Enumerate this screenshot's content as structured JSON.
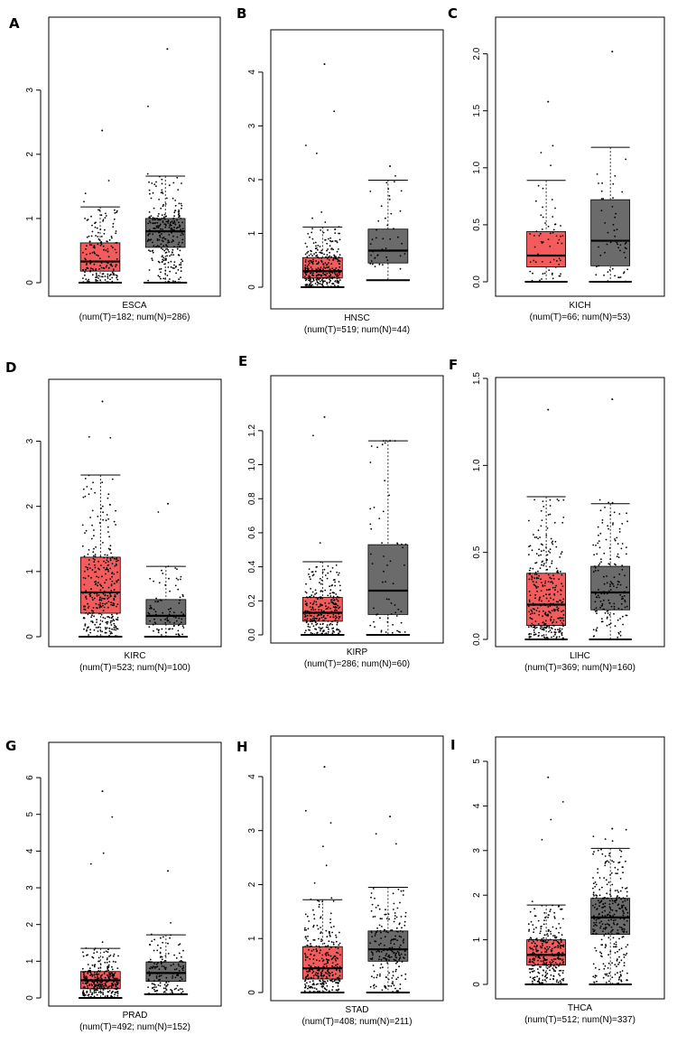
{
  "chart_data": [
    {
      "panel": "A",
      "type": "box",
      "category": "ESCA",
      "counts_label": "(num(T)=182; num(N)=286)",
      "y_ticks": [
        0,
        1,
        2,
        3
      ],
      "ylim": [
        0,
        3.7
      ],
      "series": [
        {
          "name": "T",
          "color": "#f25c5c",
          "n": 182,
          "min": 0.0,
          "q1": 0.18,
          "median": 0.33,
          "q3": 0.62,
          "whisker_high": 1.18,
          "max_point": 2.37
        },
        {
          "name": "N",
          "color": "#6b6b6b",
          "n": 286,
          "min": 0.0,
          "q1": 0.55,
          "median": 0.8,
          "q3": 1.0,
          "whisker_high": 1.66,
          "max_point": 3.64
        }
      ]
    },
    {
      "panel": "B",
      "type": "box",
      "category": "HNSC",
      "counts_label": "(num(T)=519; num(N)=44)",
      "y_ticks": [
        0,
        1,
        2,
        3,
        4
      ],
      "ylim": [
        0,
        4.25
      ],
      "series": [
        {
          "name": "T",
          "color": "#f25c5c",
          "n": 519,
          "min": 0.0,
          "q1": 0.17,
          "median": 0.3,
          "q3": 0.55,
          "whisker_high": 1.12,
          "max_point": 4.15
        },
        {
          "name": "N",
          "color": "#6b6b6b",
          "n": 44,
          "min": 0.13,
          "q1": 0.45,
          "median": 0.68,
          "q3": 1.08,
          "whisker_high": 1.99,
          "max_point": 2.25
        }
      ]
    },
    {
      "panel": "C",
      "type": "box",
      "category": "KICH",
      "counts_label": "(num(T)=66; num(N)=53)",
      "y_ticks": [
        0.0,
        0.5,
        1.0,
        1.5,
        2.0
      ],
      "ylim": [
        0,
        2.1
      ],
      "series": [
        {
          "name": "T",
          "color": "#f25c5c",
          "n": 66,
          "min": 0.0,
          "q1": 0.13,
          "median": 0.23,
          "q3": 0.44,
          "whisker_high": 0.89,
          "max_point": 1.58
        },
        {
          "name": "N",
          "color": "#6b6b6b",
          "n": 53,
          "min": 0.0,
          "q1": 0.14,
          "median": 0.36,
          "q3": 0.72,
          "whisker_high": 1.18,
          "max_point": 2.02
        }
      ]
    },
    {
      "panel": "D",
      "type": "box",
      "category": "KIRC",
      "counts_label": "(num(T)=523; num(N)=100)",
      "y_ticks": [
        0,
        1,
        2,
        3
      ],
      "ylim": [
        0,
        3.7
      ],
      "series": [
        {
          "name": "T",
          "color": "#f25c5c",
          "n": 523,
          "min": 0.0,
          "q1": 0.36,
          "median": 0.68,
          "q3": 1.22,
          "whisker_high": 2.48,
          "max_point": 3.61
        },
        {
          "name": "N",
          "color": "#6b6b6b",
          "n": 100,
          "min": 0.0,
          "q1": 0.19,
          "median": 0.32,
          "q3": 0.57,
          "whisker_high": 1.08,
          "max_point": 2.04
        }
      ]
    },
    {
      "panel": "E",
      "type": "box",
      "category": "KIRP",
      "counts_label": "(num(T)=286; num(N)=60)",
      "y_ticks": [
        0.0,
        0.2,
        0.4,
        0.6,
        0.8,
        1.0,
        1.2
      ],
      "ylim": [
        0,
        1.3
      ],
      "series": [
        {
          "name": "T",
          "color": "#f25c5c",
          "n": 286,
          "min": 0.0,
          "q1": 0.08,
          "median": 0.13,
          "q3": 0.22,
          "whisker_high": 0.43,
          "max_point": 1.28
        },
        {
          "name": "N",
          "color": "#6b6b6b",
          "n": 60,
          "min": 0.0,
          "q1": 0.12,
          "median": 0.26,
          "q3": 0.53,
          "whisker_high": 1.14,
          "max_point": 1.14
        }
      ]
    },
    {
      "panel": "F",
      "type": "box",
      "category": "LIHC",
      "counts_label": "(num(T)=369; num(N)=160)",
      "y_ticks": [
        0.0,
        0.5,
        1.0,
        1.5
      ],
      "ylim": [
        0,
        1.5
      ],
      "series": [
        {
          "name": "T",
          "color": "#f25c5c",
          "n": 369,
          "min": 0.0,
          "q1": 0.08,
          "median": 0.2,
          "q3": 0.38,
          "whisker_high": 0.82,
          "max_point": 1.32
        },
        {
          "name": "N",
          "color": "#6b6b6b",
          "n": 160,
          "min": 0.0,
          "q1": 0.17,
          "median": 0.27,
          "q3": 0.42,
          "whisker_high": 0.78,
          "max_point": 1.38
        }
      ]
    },
    {
      "panel": "G",
      "type": "box",
      "category": "PRAD",
      "counts_label": "(num(T)=492; num(N)=152)",
      "y_ticks": [
        0,
        1,
        2,
        3,
        4,
        5,
        6
      ],
      "ylim": [
        0,
        6.1
      ],
      "series": [
        {
          "name": "T",
          "color": "#f25c5c",
          "n": 492,
          "min": 0.0,
          "q1": 0.25,
          "median": 0.48,
          "q3": 0.72,
          "whisker_high": 1.35,
          "max_point": 5.63
        },
        {
          "name": "N",
          "color": "#6b6b6b",
          "n": 152,
          "min": 0.1,
          "q1": 0.45,
          "median": 0.68,
          "q3": 0.98,
          "whisker_high": 1.72,
          "max_point": 3.46
        }
      ]
    },
    {
      "panel": "H",
      "type": "box",
      "category": "STAD",
      "counts_label": "(num(T)=408; num(N)=211)",
      "y_ticks": [
        0,
        1,
        2,
        3,
        4
      ],
      "ylim": [
        0,
        4.3
      ],
      "series": [
        {
          "name": "T",
          "color": "#f25c5c",
          "n": 408,
          "min": 0.0,
          "q1": 0.25,
          "median": 0.45,
          "q3": 0.85,
          "whisker_high": 1.72,
          "max_point": 4.18
        },
        {
          "name": "N",
          "color": "#6b6b6b",
          "n": 211,
          "min": 0.0,
          "q1": 0.58,
          "median": 0.8,
          "q3": 1.14,
          "whisker_high": 1.95,
          "max_point": 3.26
        }
      ]
    },
    {
      "panel": "I",
      "type": "box",
      "category": "THCA",
      "counts_label": "(num(T)=512; num(N)=337)",
      "y_ticks": [
        0,
        1,
        2,
        3,
        4,
        5
      ],
      "ylim": [
        0,
        5.0
      ],
      "series": [
        {
          "name": "T",
          "color": "#f25c5c",
          "n": 512,
          "min": 0.0,
          "q1": 0.43,
          "median": 0.66,
          "q3": 1.0,
          "whisker_high": 1.78,
          "max_point": 4.64
        },
        {
          "name": "N",
          "color": "#6b6b6b",
          "n": 337,
          "min": 0.0,
          "q1": 1.12,
          "median": 1.5,
          "q3": 1.93,
          "whisker_high": 3.05,
          "max_point": 3.49
        }
      ]
    }
  ]
}
